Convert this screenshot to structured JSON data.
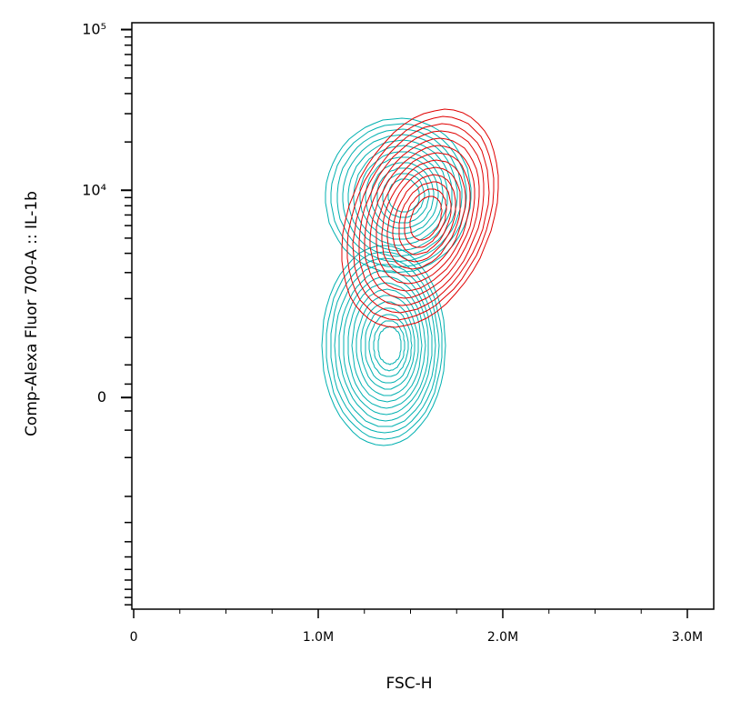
{
  "chart_data": {
    "type": "contour",
    "x_label": "FSC-H",
    "y_label": "Comp-Alexa Fluor 700-A :: IL-1b",
    "xlim": [
      -10000,
      3143000
    ],
    "xticks": [
      0,
      {
        "value": 1000000,
        "label": "1.0M"
      },
      {
        "value": 2000000,
        "label": "2.0M"
      },
      {
        "value": 3000000,
        "label": "3.0M"
      }
    ],
    "xminorticks": [
      250000,
      500000,
      750000,
      1250000,
      1500000,
      1750000,
      2250000,
      2500000,
      2750000
    ],
    "yscale": "biexponential",
    "ylim": [
      -10650,
      110300
    ],
    "yticks": [
      {
        "value": 0,
        "label": "0"
      },
      {
        "value": 10000,
        "label": "10⁴"
      },
      {
        "value": 100000,
        "label": "10⁵"
      }
    ],
    "yminorticks": [
      20000,
      30000,
      40000,
      50000,
      60000,
      70000,
      80000,
      90000,
      2000,
      3000,
      4000,
      5000,
      6000,
      7000,
      8000,
      9000,
      1000,
      500,
      200,
      -200,
      -500,
      -1000,
      -2000,
      -3000,
      -4000,
      -5000,
      -6000,
      -7000,
      -8000,
      -9000,
      -10000
    ]
  }
}
